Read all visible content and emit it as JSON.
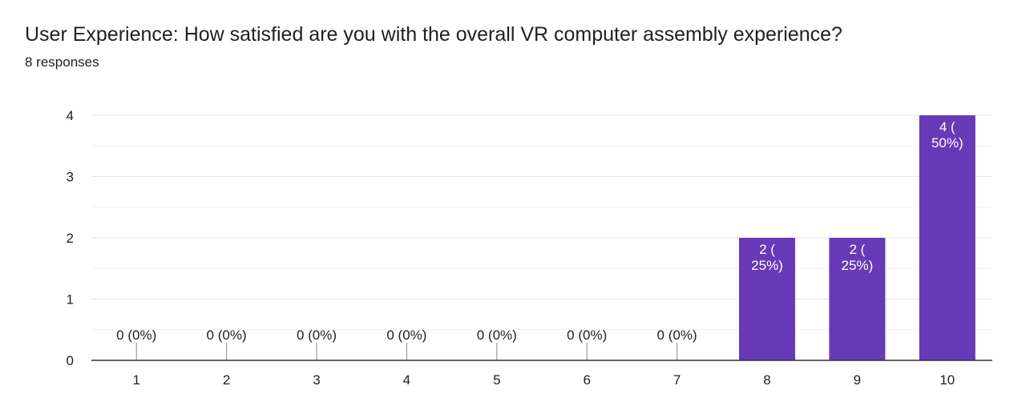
{
  "question": {
    "title": "User Experience: How satisfied are you with the overall VR computer assembly experience?",
    "responses_label": "8 responses"
  },
  "chart_data": {
    "type": "bar",
    "categories": [
      "1",
      "2",
      "3",
      "4",
      "5",
      "6",
      "7",
      "8",
      "9",
      "10"
    ],
    "values": [
      0,
      0,
      0,
      0,
      0,
      0,
      0,
      2,
      2,
      4
    ],
    "data_labels": [
      [
        "0 (0%)"
      ],
      [
        "0 (0%)"
      ],
      [
        "0 (0%)"
      ],
      [
        "0 (0%)"
      ],
      [
        "0 (0%)"
      ],
      [
        "0 (0%)"
      ],
      [
        "0 (0%)"
      ],
      [
        "2 (",
        "25%)"
      ],
      [
        "2 (",
        "25%)"
      ],
      [
        "4 (",
        "50%)"
      ]
    ],
    "yticks": [
      0,
      1,
      2,
      3,
      4
    ],
    "ylim": [
      0,
      4
    ],
    "bar_color": "#673ab7",
    "grid": true,
    "legend": "none"
  }
}
